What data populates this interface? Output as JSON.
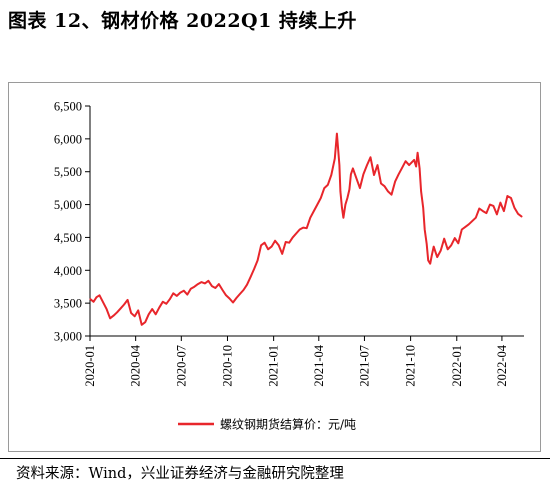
{
  "title": "图表 12、钢材价格 2022Q1 持续上升",
  "source": "资料来源：Wind，兴业证券经济与金融研究院整理",
  "colors": {
    "series": "#e8262b",
    "axis": "#000000",
    "frame": "#9a9a9a"
  },
  "chart_data": {
    "type": "line",
    "title": "",
    "xlabel": "",
    "ylabel": "",
    "ylim": [
      3000,
      6500
    ],
    "xlim": [
      "2020-01-01",
      "2022-05-15"
    ],
    "grid": false,
    "legend_position": "bottom",
    "y_ticks": [
      3000,
      3500,
      4000,
      4500,
      5000,
      5500,
      6000,
      6500
    ],
    "y_tick_labels": [
      "3,000",
      "3,500",
      "4,000",
      "4,500",
      "5,000",
      "5,500",
      "6,000",
      "6,500"
    ],
    "x_tick_dates": [
      "2020-01-01",
      "2020-04-01",
      "2020-07-01",
      "2020-10-01",
      "2021-01-01",
      "2021-04-01",
      "2021-07-01",
      "2021-10-01",
      "2022-01-01",
      "2022-04-01"
    ],
    "x_tick_labels": [
      "2020-01",
      "2020-04",
      "2020-07",
      "2020-10",
      "2021-01",
      "2021-04",
      "2021-07",
      "2021-10",
      "2022-01",
      "2022-04"
    ],
    "series": [
      {
        "name": "螺纹钢期货结算价：元/吨",
        "x": [
          "2020-01-02",
          "2020-01-08",
          "2020-01-14",
          "2020-01-20",
          "2020-02-03",
          "2020-02-10",
          "2020-02-17",
          "2020-02-24",
          "2020-03-02",
          "2020-03-09",
          "2020-03-16",
          "2020-03-23",
          "2020-03-30",
          "2020-04-06",
          "2020-04-13",
          "2020-04-20",
          "2020-04-27",
          "2020-05-04",
          "2020-05-11",
          "2020-05-18",
          "2020-05-25",
          "2020-06-01",
          "2020-06-08",
          "2020-06-15",
          "2020-06-22",
          "2020-06-29",
          "2020-07-06",
          "2020-07-13",
          "2020-07-20",
          "2020-07-27",
          "2020-08-03",
          "2020-08-10",
          "2020-08-17",
          "2020-08-24",
          "2020-08-31",
          "2020-09-07",
          "2020-09-14",
          "2020-09-21",
          "2020-09-28",
          "2020-10-05",
          "2020-10-12",
          "2020-10-19",
          "2020-10-26",
          "2020-11-02",
          "2020-11-09",
          "2020-11-16",
          "2020-11-23",
          "2020-11-30",
          "2020-12-07",
          "2020-12-14",
          "2020-12-21",
          "2020-12-28",
          "2021-01-04",
          "2021-01-11",
          "2021-01-18",
          "2021-01-25",
          "2021-02-01",
          "2021-02-08",
          "2021-02-22",
          "2021-03-01",
          "2021-03-08",
          "2021-03-15",
          "2021-03-22",
          "2021-03-29",
          "2021-04-05",
          "2021-04-12",
          "2021-04-19",
          "2021-04-26",
          "2021-05-03",
          "2021-05-07",
          "2021-05-12",
          "2021-05-14",
          "2021-05-17",
          "2021-05-20",
          "2021-05-24",
          "2021-05-28",
          "2021-06-01",
          "2021-06-04",
          "2021-06-08",
          "2021-06-15",
          "2021-06-22",
          "2021-06-29",
          "2021-07-06",
          "2021-07-13",
          "2021-07-20",
          "2021-07-27",
          "2021-08-03",
          "2021-08-10",
          "2021-08-17",
          "2021-08-24",
          "2021-08-31",
          "2021-09-07",
          "2021-09-14",
          "2021-09-21",
          "2021-09-28",
          "2021-10-08",
          "2021-10-12",
          "2021-10-15",
          "2021-10-19",
          "2021-10-22",
          "2021-10-26",
          "2021-10-29",
          "2021-11-02",
          "2021-11-05",
          "2021-11-09",
          "2021-11-12",
          "2021-11-16",
          "2021-11-19",
          "2021-11-23",
          "2021-11-30",
          "2021-12-07",
          "2021-12-14",
          "2021-12-21",
          "2021-12-28",
          "2022-01-04",
          "2022-01-11",
          "2022-01-18",
          "2022-01-25",
          "2022-02-08",
          "2022-02-15",
          "2022-02-22",
          "2022-03-01",
          "2022-03-08",
          "2022-03-15",
          "2022-03-22",
          "2022-03-29",
          "2022-04-05",
          "2022-04-12",
          "2022-04-19",
          "2022-04-26",
          "2022-05-03",
          "2022-05-10"
        ],
        "y": [
          3560,
          3520,
          3590,
          3620,
          3410,
          3270,
          3310,
          3360,
          3420,
          3480,
          3550,
          3350,
          3300,
          3390,
          3170,
          3210,
          3330,
          3410,
          3330,
          3430,
          3520,
          3490,
          3560,
          3650,
          3610,
          3660,
          3690,
          3630,
          3720,
          3750,
          3790,
          3820,
          3800,
          3840,
          3760,
          3730,
          3790,
          3700,
          3620,
          3570,
          3510,
          3580,
          3640,
          3700,
          3780,
          3900,
          4020,
          4150,
          4380,
          4420,
          4320,
          4360,
          4450,
          4380,
          4250,
          4430,
          4420,
          4500,
          4620,
          4650,
          4640,
          4800,
          4900,
          5000,
          5100,
          5250,
          5300,
          5450,
          5700,
          6080,
          5600,
          5200,
          4960,
          4800,
          5000,
          5100,
          5230,
          5460,
          5550,
          5400,
          5250,
          5460,
          5600,
          5720,
          5450,
          5600,
          5320,
          5280,
          5200,
          5150,
          5350,
          5460,
          5560,
          5660,
          5600,
          5680,
          5580,
          5790,
          5550,
          5200,
          4950,
          4620,
          4400,
          4150,
          4100,
          4220,
          4360,
          4290,
          4200,
          4300,
          4480,
          4320,
          4380,
          4490,
          4410,
          4620,
          4660,
          4700,
          4800,
          4940,
          4900,
          4870,
          5000,
          4980,
          4850,
          5030,
          4900,
          5130,
          5100,
          4950,
          4860,
          4820
        ]
      }
    ]
  }
}
